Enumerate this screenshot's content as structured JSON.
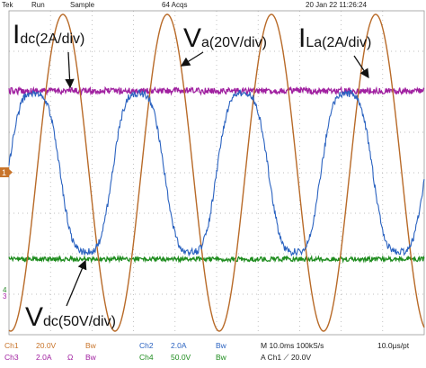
{
  "status_bar": {
    "brand": "Tek",
    "state": "Run",
    "mode": "Sample",
    "acquisitions": "64 Acqs",
    "timestamp": "20 Jan 22 11:26:24"
  },
  "annotations": [
    {
      "symbol": "I",
      "subscript": "dc(2A/div)"
    },
    {
      "symbol": "V",
      "subscript": "a(20V/div)"
    },
    {
      "symbol": "I",
      "subscript": "La(2A/div)"
    },
    {
      "symbol": "V",
      "subscript": "dc(50V/div)"
    }
  ],
  "markers": {
    "ch1": "1",
    "ch4": "4",
    "ch3": "3"
  },
  "readout": [
    [
      "Ch1",
      "20.0V",
      "Bw",
      "Ch2",
      "2.0A",
      "Bw",
      "M 10.0ms 100kS/s",
      "10.0µs/pt"
    ],
    [
      "Ch3",
      "2.0A",
      "Ω",
      "Bw",
      "Ch4",
      "50.0V",
      "Bw",
      "A Ch1 ⟋ 20.0V"
    ]
  ]
}
